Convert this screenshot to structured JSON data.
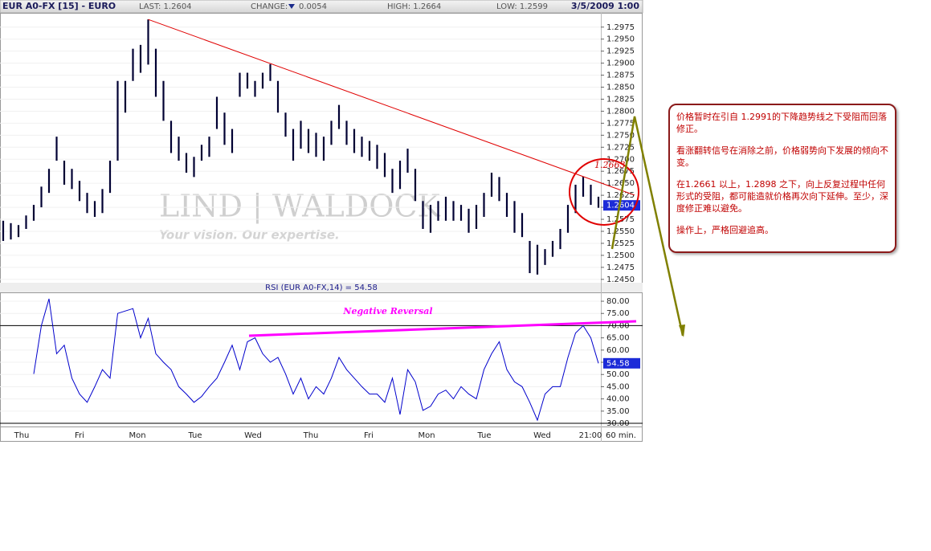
{
  "header": {
    "symbol": "EUR A0-FX [15] - EURO",
    "last": "LAST: 1.2604",
    "change_label": "CHANGE:",
    "change": "0.0054",
    "high": "HIGH: 1.2664",
    "low": "LOW: 1.2599",
    "datetime": "3/5/2009 1:00"
  },
  "watermark": {
    "brand": "LIND | WALDOCK",
    "slogan": "Your vision. Our expertise."
  },
  "chart_data": [
    {
      "type": "range_bar",
      "color": "#000033",
      "trendline_color": "#e00000",
      "callout": "1.2663",
      "price_marker": 1.2604,
      "ylim": [
        1.2443,
        1.3003
      ],
      "yticks": [
        1.2975,
        {
          "value": 1.295,
          "label": "1.2950"
        },
        1.2925,
        {
          "value": 1.29,
          "label": "1.2900"
        },
        1.2875,
        {
          "value": 1.285,
          "label": "1.2850"
        },
        1.2825,
        {
          "value": 1.28,
          "label": "1.2800"
        },
        1.2775,
        {
          "value": 1.275,
          "label": "1.2750"
        },
        1.2725,
        {
          "value": 1.27,
          "label": "1.2700"
        },
        1.2675,
        {
          "value": 1.265,
          "label": "1.2650"
        },
        1.2625,
        {
          "value": 1.26,
          "label": "1.2600"
        },
        1.2575,
        {
          "value": 1.255,
          "label": "1.2550"
        },
        1.2525,
        {
          "value": 1.25,
          "label": "1.2500"
        },
        1.2475,
        {
          "value": 1.245,
          "label": "1.2450"
        }
      ],
      "high": [
        1.2572,
        1.2567,
        1.2563,
        1.2583,
        1.2605,
        1.2643,
        1.268,
        1.2747,
        1.2697,
        1.268,
        1.2655,
        1.263,
        1.2613,
        1.2638,
        1.2697,
        1.2863,
        1.2863,
        1.293,
        1.2938,
        1.2991,
        1.293,
        1.2863,
        1.278,
        1.2747,
        1.2713,
        1.2705,
        1.273,
        1.2747,
        1.283,
        1.2797,
        1.2763,
        1.288,
        1.288,
        1.2863,
        1.288,
        1.2898,
        1.2863,
        1.2797,
        1.2763,
        1.278,
        1.2763,
        1.2755,
        1.2747,
        1.278,
        1.2813,
        1.278,
        1.2763,
        1.2747,
        1.2738,
        1.273,
        1.2713,
        1.268,
        1.2697,
        1.2722,
        1.268,
        1.2613,
        1.2605,
        1.2613,
        1.2622,
        1.2613,
        1.2605,
        1.2597,
        1.2605,
        1.263,
        1.2672,
        1.2663,
        1.263,
        1.2613,
        1.2588,
        1.253,
        1.2522,
        1.2513,
        1.253,
        1.2555,
        1.2605,
        1.2647,
        1.2664,
        1.2647,
        1.2622
      ],
      "low": [
        1.253,
        1.2533,
        1.2538,
        1.2555,
        1.2572,
        1.26,
        1.263,
        1.2697,
        1.2647,
        1.2638,
        1.2613,
        1.2588,
        1.258,
        1.2588,
        1.263,
        1.2697,
        1.2797,
        1.2863,
        1.288,
        1.2897,
        1.283,
        1.278,
        1.2713,
        1.2697,
        1.2672,
        1.2663,
        1.2697,
        1.2705,
        1.2763,
        1.273,
        1.2713,
        1.283,
        1.2847,
        1.283,
        1.2847,
        1.2863,
        1.2797,
        1.2747,
        1.2697,
        1.2722,
        1.2713,
        1.2705,
        1.2697,
        1.273,
        1.2763,
        1.273,
        1.2713,
        1.2705,
        1.2697,
        1.268,
        1.2663,
        1.263,
        1.2638,
        1.2672,
        1.2613,
        1.2555,
        1.2547,
        1.2572,
        1.2572,
        1.2572,
        1.2572,
        1.2547,
        1.2555,
        1.258,
        1.2622,
        1.2613,
        1.258,
        1.2547,
        1.2538,
        1.2463,
        1.246,
        1.248,
        1.2497,
        1.2513,
        1.2547,
        1.2588,
        1.2622,
        1.2605,
        1.2599
      ],
      "x_labels": [
        "Thu",
        "Fri",
        "Mon",
        "Tue",
        "Wed",
        "Thu",
        "Fri",
        "Mon",
        "Tue",
        "Wed"
      ],
      "last_time": "21:00",
      "interval": "60 min."
    },
    {
      "type": "line",
      "title": "RSI (EUR A0-FX,14) = 54.58",
      "color": "#0000cc",
      "annotation": "Negative Reversal",
      "value_marker": 54.58,
      "reference_lines": [
        70,
        30
      ],
      "ylim": [
        28.7,
        83.3
      ],
      "yticks": [
        {
          "value": 80,
          "label": "80.00"
        },
        {
          "value": 75,
          "label": "75.00"
        },
        {
          "value": 70,
          "label": "70.00"
        },
        {
          "value": 65,
          "label": "65.00"
        },
        {
          "value": 60,
          "label": "60.00"
        },
        {
          "value": 55,
          "label": "55.00"
        },
        {
          "value": 50,
          "label": "50.00"
        },
        {
          "value": 45,
          "label": "45.00"
        },
        {
          "value": 40,
          "label": "40.00"
        },
        {
          "value": 35,
          "label": "35.00"
        },
        {
          "value": 30,
          "label": "30.00"
        }
      ],
      "values": [
        null,
        null,
        null,
        null,
        50.2,
        70,
        81,
        58.5,
        62,
        48.5,
        42,
        38.6,
        45,
        52,
        48.5,
        75,
        76,
        77,
        65,
        73,
        58.5,
        55,
        52,
        45,
        42,
        38.6,
        41,
        45,
        48.5,
        55,
        62,
        52,
        63.4,
        65,
        58.5,
        55,
        57,
        50.2,
        42,
        48.5,
        40,
        45,
        42,
        48.5,
        57,
        52,
        48.5,
        45,
        42,
        42,
        38.6,
        48.5,
        33.6,
        52,
        47,
        35.3,
        37,
        42,
        43.6,
        40,
        45,
        42,
        40,
        52,
        58.5,
        63.4,
        52,
        47,
        45,
        38.6,
        31.3,
        42,
        45,
        45,
        57,
        67,
        70,
        65,
        54.58
      ]
    }
  ],
  "annotation": {
    "paragraphs": [
      "价格暂时在引自 1.2991的下降趋势线之下受阻而回落修正。",
      "看涨翻转信号在消除之前，价格弱势向下发展的倾向不变。",
      "在1.2661 以上，1.2898 之下，向上反复过程中任何形式的受阻，都可能造就价格再次向下延伸。至少，深度修正难以避免。",
      "操作上，严格回避追高。"
    ]
  }
}
